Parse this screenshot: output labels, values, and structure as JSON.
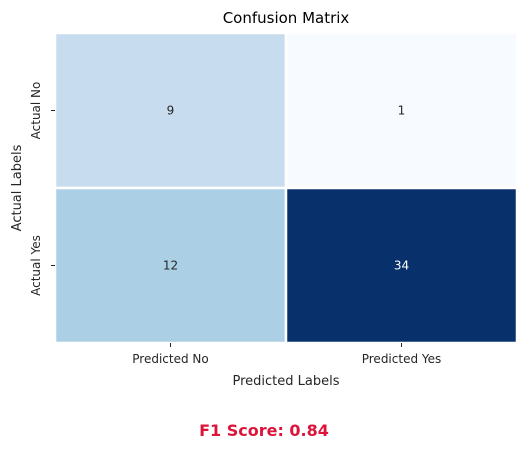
{
  "chart_data": {
    "type": "heatmap",
    "title": "Confusion Matrix",
    "xlabel": "Predicted Labels",
    "ylabel": "Actual Labels",
    "x_categories": [
      "Predicted No",
      "Predicted Yes"
    ],
    "y_categories": [
      "Actual No",
      "Actual Yes"
    ],
    "values": [
      [
        9,
        1
      ],
      [
        12,
        34
      ]
    ],
    "colormap": "Blues",
    "value_range": [
      1,
      34
    ],
    "colorbar": false,
    "grid": false
  },
  "metric": {
    "text": "F1 Score: 0.84",
    "color": "#dc143c"
  }
}
